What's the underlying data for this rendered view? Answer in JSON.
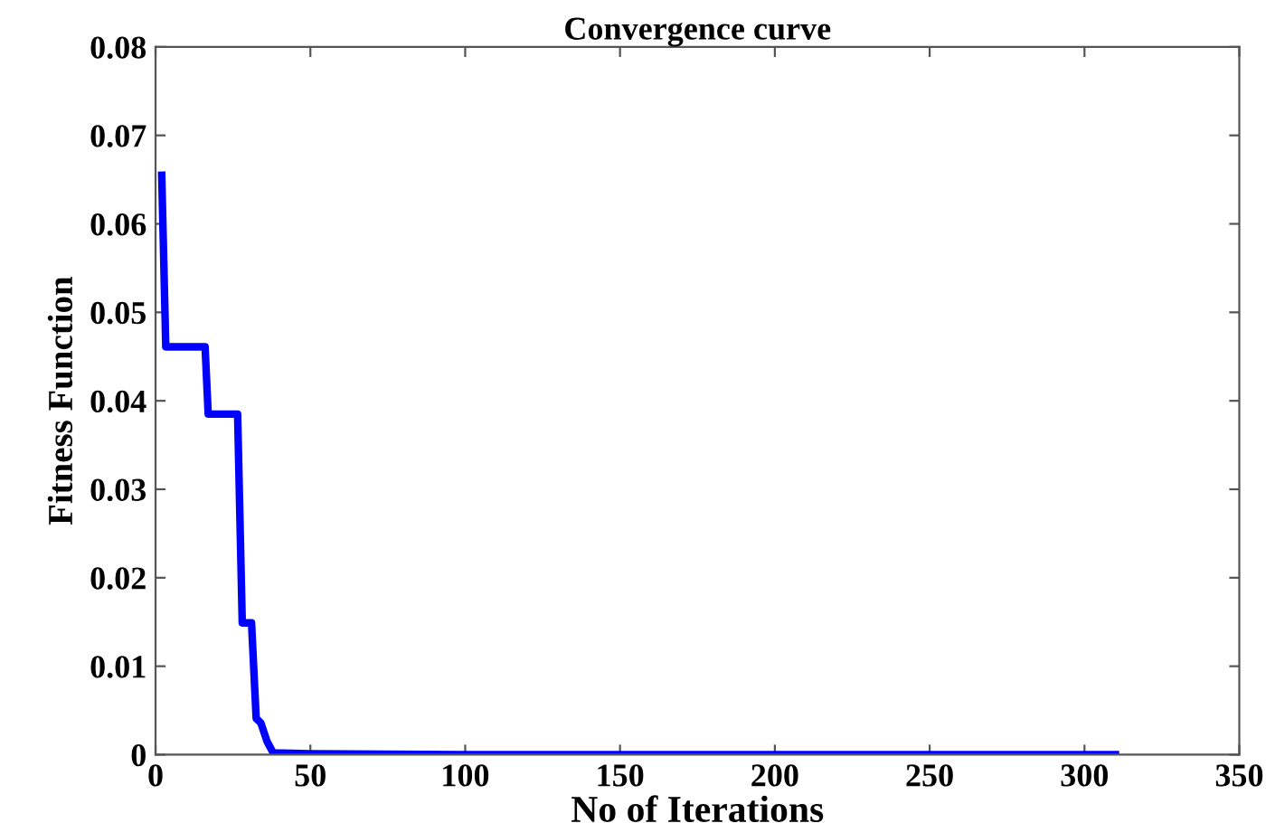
{
  "chart_data": {
    "type": "line",
    "title": "Convergence curve",
    "xlabel": "No of Iterations",
    "ylabel": "Fitness Function",
    "x": [
      2,
      3.3,
      16,
      17,
      26.5,
      28,
      31,
      32.5,
      34,
      36,
      38,
      50,
      100,
      200,
      310
    ],
    "series": [
      {
        "color": "#0000ff",
        "values": [
          0.0655,
          0.0461,
          0.0461,
          0.0385,
          0.0385,
          0.0149,
          0.0149,
          0.0041,
          0.0036,
          0.0015,
          0.0002,
          0.0001,
          0,
          0,
          0
        ]
      }
    ],
    "xlim": [
      0,
      350
    ],
    "xticks": [
      0,
      50,
      100,
      150,
      200,
      250,
      300,
      350
    ],
    "ylim": [
      0,
      0.08
    ],
    "yticks": [
      0,
      0.01,
      0.02,
      0.03,
      0.04,
      0.05,
      0.06,
      0.07,
      0.08
    ],
    "grid": false,
    "legend": false,
    "line_style": "solid",
    "marker": "none"
  }
}
